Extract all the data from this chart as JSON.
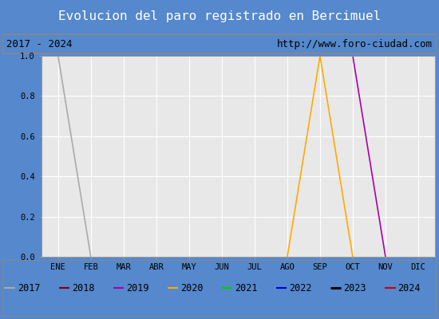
{
  "title": "Evolucion del paro registrado en Bercimuel",
  "subtitle_left": "2017 - 2024",
  "subtitle_right": "http://www.foro-ciudad.com",
  "months": [
    "ENE",
    "FEB",
    "MAR",
    "ABR",
    "MAY",
    "JUN",
    "JUL",
    "AGO",
    "SEP",
    "OCT",
    "NOV",
    "DIC"
  ],
  "month_indices": [
    1,
    2,
    3,
    4,
    5,
    6,
    7,
    8,
    9,
    10,
    11,
    12
  ],
  "ylim": [
    0.0,
    1.0
  ],
  "yticks": [
    0.0,
    0.2,
    0.4,
    0.6,
    0.8,
    1.0
  ],
  "series": {
    "2017": {
      "color": "#aaaaaa",
      "data": [
        [
          1,
          1.0
        ],
        [
          2,
          0.0
        ]
      ]
    },
    "2018": {
      "color": "#800000",
      "data": []
    },
    "2019": {
      "color": "#aa00aa",
      "data": [
        [
          9,
          1.0
        ],
        [
          10,
          1.0
        ],
        [
          11,
          0.0
        ]
      ]
    },
    "2020": {
      "color": "#ffaa00",
      "data": [
        [
          8,
          0.0
        ],
        [
          9,
          1.0
        ],
        [
          10,
          0.0
        ]
      ]
    },
    "2021": {
      "color": "#00cc00",
      "data": []
    },
    "2022": {
      "color": "#0000cc",
      "data": []
    },
    "2023": {
      "color": "#000000",
      "data": []
    },
    "2024": {
      "color": "#cc0000",
      "data": []
    }
  },
  "legend_order": [
    "2017",
    "2018",
    "2019",
    "2020",
    "2021",
    "2022",
    "2023",
    "2024"
  ],
  "title_bg_color": "#5588cc",
  "title_text_color": "#ffffff",
  "subtitle_bg_color": "#f0f0f0",
  "plot_bg_color": "#e8e8e8",
  "legend_bg_color": "#e0e0e0",
  "grid_color": "#ffffff",
  "border_color": "#999999",
  "outer_bg_color": "#5588cc"
}
